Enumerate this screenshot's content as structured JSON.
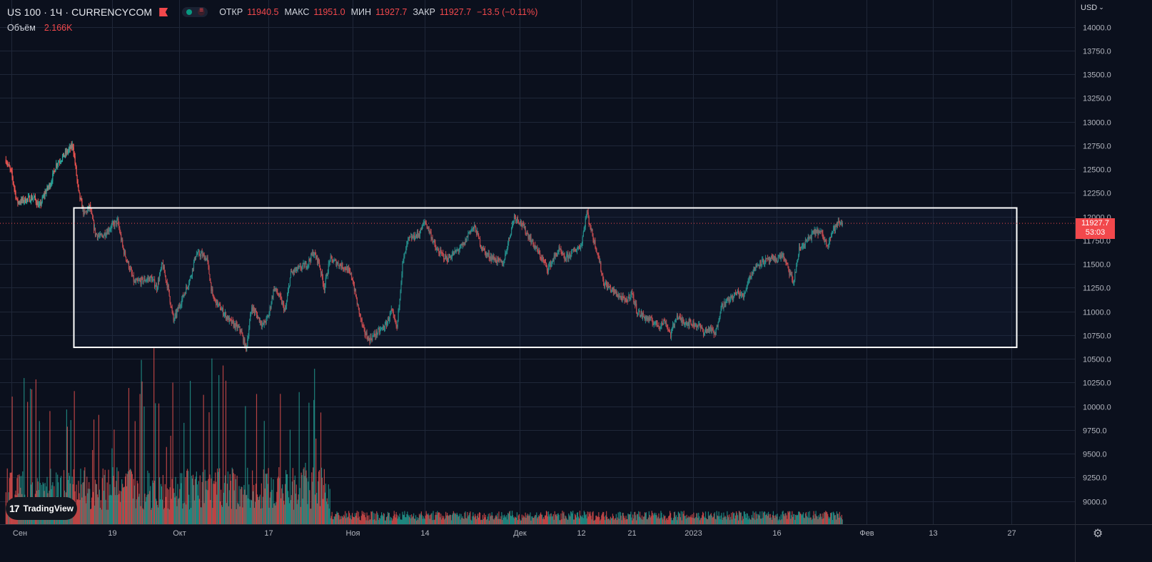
{
  "header": {
    "title": "US 100 · 1Ч · CURRENCYCOM",
    "ohlc": [
      {
        "label": "ОТКР",
        "value": "11940.5"
      },
      {
        "label": "МАКС",
        "value": "11951.0"
      },
      {
        "label": "МИН",
        "value": "11927.7"
      },
      {
        "label": "ЗАКР",
        "value": "11927.7"
      }
    ],
    "change": "−13.5 (−0.11%)"
  },
  "volume": {
    "label": "Объём",
    "value": "2.166K"
  },
  "currency": "USD",
  "last_price": {
    "value": "11927.7",
    "countdown": "53:03"
  },
  "branding": {
    "logo_text": "TradingView"
  },
  "icons": {
    "settings": "gear-icon",
    "flag": "flag-icon",
    "currency_chevron": "chevron-down-icon"
  },
  "colors": {
    "background": "#0b101d",
    "up": "#26a69a",
    "down": "#ef5350",
    "price_line": "#f2484c",
    "grid": "#1f2738",
    "box": "#ffffff"
  },
  "chart_data": {
    "type": "candlestick",
    "timeframe": "1 hour",
    "y_axis": {
      "ticks": [
        14000,
        13750,
        13500,
        13250,
        13000,
        12750,
        12500,
        12250,
        12000,
        11750,
        11500,
        11250,
        11000,
        10750,
        10500,
        10250,
        10000,
        9750,
        9500,
        9250,
        9000
      ],
      "tick_labels": [
        "14000.0",
        "13750.0",
        "13500.0",
        "13250.0",
        "13000.0",
        "12750.0",
        "12500.0",
        "12250.0",
        "12000.0",
        "11750.0",
        "11500.0",
        "11250.0",
        "11000.0",
        "10750.0",
        "10500.0",
        "10250.0",
        "10000.0",
        "9750.0",
        "9500.0",
        "9250.0",
        "9000.0"
      ],
      "ylim": [
        8740,
        14200
      ]
    },
    "x_axis": {
      "ticks": [
        {
          "label": "Сен",
          "date": "2022-09-01"
        },
        {
          "label": "19",
          "date": "2022-09-19"
        },
        {
          "label": "Окт",
          "date": "2022-10-01"
        },
        {
          "label": "17",
          "date": "2022-10-17"
        },
        {
          "label": "Ноя",
          "date": "2022-11-01"
        },
        {
          "label": "14",
          "date": "2022-11-14"
        },
        {
          "label": "Дек",
          "date": "2022-12-01"
        },
        {
          "label": "12",
          "date": "2022-12-12"
        },
        {
          "label": "21",
          "date": "2022-12-21"
        },
        {
          "label": "2023",
          "date": "2023-01-01"
        },
        {
          "label": "16",
          "date": "2023-01-16"
        },
        {
          "label": "Фев",
          "date": "2023-02-01"
        },
        {
          "label": "13",
          "date": "2023-02-13"
        },
        {
          "label": "27",
          "date": "2023-02-27"
        }
      ],
      "xlim": [
        "2022-08-31",
        "2023-03-03"
      ]
    },
    "price_path": [
      [
        "2022-08-31",
        12600
      ],
      [
        "2022-09-01",
        12450
      ],
      [
        "2022-09-02",
        12150
      ],
      [
        "2022-09-05",
        12200
      ],
      [
        "2022-09-06",
        12100
      ],
      [
        "2022-09-07",
        12250
      ],
      [
        "2022-09-08",
        12350
      ],
      [
        "2022-09-09",
        12550
      ],
      [
        "2022-09-12",
        12750
      ],
      [
        "2022-09-13",
        12250
      ],
      [
        "2022-09-14",
        12020
      ],
      [
        "2022-09-15",
        12100
      ],
      [
        "2022-09-16",
        11820
      ],
      [
        "2022-09-17",
        11780
      ],
      [
        "2022-09-19",
        11900
      ],
      [
        "2022-09-20",
        11950
      ],
      [
        "2022-09-21",
        11650
      ],
      [
        "2022-09-22",
        11480
      ],
      [
        "2022-09-23",
        11300
      ],
      [
        "2022-09-26",
        11350
      ],
      [
        "2022-09-27",
        11250
      ],
      [
        "2022-09-28",
        11500
      ],
      [
        "2022-09-29",
        11250
      ],
      [
        "2022-09-30",
        10900
      ],
      [
        "2022-10-03",
        11350
      ],
      [
        "2022-10-04",
        11600
      ],
      [
        "2022-10-05",
        11600
      ],
      [
        "2022-10-06",
        11550
      ],
      [
        "2022-10-07",
        11150
      ],
      [
        "2022-10-10",
        10900
      ],
      [
        "2022-10-11",
        10850
      ],
      [
        "2022-10-12",
        10800
      ],
      [
        "2022-10-13",
        10600
      ],
      [
        "2022-10-14",
        11050
      ],
      [
        "2022-10-16",
        10850
      ],
      [
        "2022-10-17",
        10950
      ],
      [
        "2022-10-18",
        11250
      ],
      [
        "2022-10-19",
        11150
      ],
      [
        "2022-10-20",
        11000
      ],
      [
        "2022-10-21",
        11400
      ],
      [
        "2022-10-24",
        11500
      ],
      [
        "2022-10-25",
        11620
      ],
      [
        "2022-10-26",
        11520
      ],
      [
        "2022-10-27",
        11250
      ],
      [
        "2022-10-28",
        11550
      ],
      [
        "2022-10-31",
        11450
      ],
      [
        "2022-11-01",
        11350
      ],
      [
        "2022-11-02",
        11050
      ],
      [
        "2022-11-03",
        10800
      ],
      [
        "2022-11-04",
        10700
      ],
      [
        "2022-11-07",
        10850
      ],
      [
        "2022-11-08",
        11000
      ],
      [
        "2022-11-09",
        10820
      ],
      [
        "2022-11-10",
        11500
      ],
      [
        "2022-11-11",
        11750
      ],
      [
        "2022-11-13",
        11820
      ],
      [
        "2022-11-14",
        11950
      ],
      [
        "2022-11-15",
        11820
      ],
      [
        "2022-11-16",
        11650
      ],
      [
        "2022-11-17",
        11600
      ],
      [
        "2022-11-18",
        11550
      ],
      [
        "2022-11-21",
        11700
      ],
      [
        "2022-11-22",
        11850
      ],
      [
        "2022-11-23",
        11880
      ],
      [
        "2022-11-24",
        11700
      ],
      [
        "2022-11-25",
        11600
      ],
      [
        "2022-11-28",
        11500
      ],
      [
        "2022-11-29",
        11750
      ],
      [
        "2022-11-30",
        12000
      ],
      [
        "2022-12-01",
        11950
      ],
      [
        "2022-12-02",
        11850
      ],
      [
        "2022-12-05",
        11550
      ],
      [
        "2022-12-06",
        11450
      ],
      [
        "2022-12-07",
        11550
      ],
      [
        "2022-12-08",
        11650
      ],
      [
        "2022-12-09",
        11550
      ],
      [
        "2022-12-12",
        11700
      ],
      [
        "2022-12-13",
        12050
      ],
      [
        "2022-12-14",
        11800
      ],
      [
        "2022-12-15",
        11600
      ],
      [
        "2022-12-16",
        11300
      ],
      [
        "2022-12-19",
        11150
      ],
      [
        "2022-12-20",
        11100
      ],
      [
        "2022-12-21",
        11200
      ],
      [
        "2022-12-22",
        11000
      ],
      [
        "2022-12-23",
        10950
      ],
      [
        "2022-12-26",
        10850
      ],
      [
        "2022-12-27",
        10900
      ],
      [
        "2022-12-28",
        10750
      ],
      [
        "2022-12-29",
        10950
      ],
      [
        "2022-12-30",
        10900
      ],
      [
        "2023-01-02",
        10850
      ],
      [
        "2023-01-03",
        10780
      ],
      [
        "2023-01-04",
        10820
      ],
      [
        "2023-01-05",
        10750
      ],
      [
        "2023-01-06",
        11050
      ],
      [
        "2023-01-09",
        11200
      ],
      [
        "2023-01-10",
        11150
      ],
      [
        "2023-01-11",
        11350
      ],
      [
        "2023-01-12",
        11450
      ],
      [
        "2023-01-13",
        11520
      ],
      [
        "2023-01-16",
        11550
      ],
      [
        "2023-01-17",
        11600
      ],
      [
        "2023-01-18",
        11450
      ],
      [
        "2023-01-19",
        11300
      ],
      [
        "2023-01-20",
        11650
      ],
      [
        "2023-01-23",
        11850
      ],
      [
        "2023-01-24",
        11820
      ],
      [
        "2023-01-25",
        11700
      ],
      [
        "2023-01-26",
        11850
      ],
      [
        "2023-01-27",
        11928
      ]
    ],
    "annotations": [
      {
        "type": "rectangle",
        "from": [
          "2022-09-14",
          12090
        ],
        "to": [
          "2023-02-27",
          10620
        ]
      },
      {
        "type": "price_line",
        "value": 11927.7
      }
    ],
    "volume": {
      "high_activity_until": "2022-10-28",
      "approx_max": 10000,
      "approx_typical_after": 1000
    }
  }
}
